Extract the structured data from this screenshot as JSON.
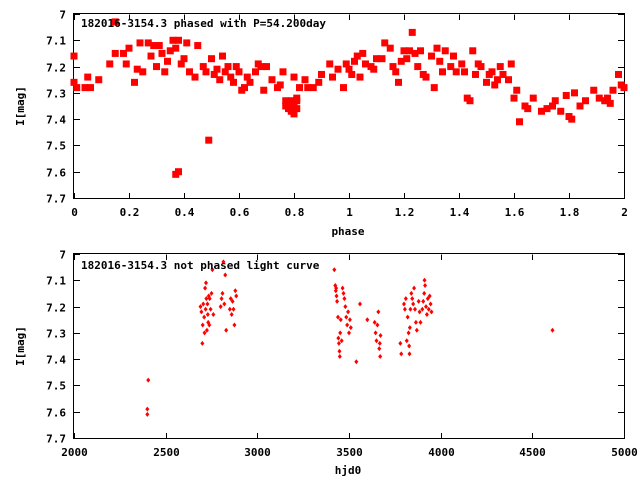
{
  "chart_data": [
    {
      "type": "scatter",
      "title": "182016-3154.3 phased with P=54.200day",
      "xlabel": "phase",
      "ylabel": "I[mag]",
      "xlim": [
        0,
        2
      ],
      "ylim": [
        7.7,
        7
      ],
      "y_inverted": true,
      "x_ticks": [
        0,
        0.2,
        0.4,
        0.6,
        0.8,
        1,
        1.2,
        1.4,
        1.6,
        1.8,
        2
      ],
      "x_tick_labels": [
        "0",
        "0.2",
        "0.4",
        "0.6",
        "0.8",
        "1",
        "1.2",
        "1.4",
        "1.6",
        "1.8",
        "2"
      ],
      "y_ticks": [
        7,
        7.1,
        7.2,
        7.3,
        7.4,
        7.5,
        7.6,
        7.7
      ],
      "y_tick_labels": [
        "7",
        "7.1",
        "7.2",
        "7.3",
        "7.4",
        "7.5",
        "7.6",
        "7.7"
      ],
      "color": "#ff0000",
      "marker": "filled-square",
      "points": [
        [
          0.0,
          7.16
        ],
        [
          0.0,
          7.26
        ],
        [
          0.01,
          7.28
        ],
        [
          0.04,
          7.28
        ],
        [
          0.05,
          7.24
        ],
        [
          0.06,
          7.28
        ],
        [
          0.09,
          7.25
        ],
        [
          0.13,
          7.19
        ],
        [
          0.15,
          7.03
        ],
        [
          0.15,
          7.15
        ],
        [
          0.18,
          7.15
        ],
        [
          0.19,
          7.19
        ],
        [
          0.2,
          7.13
        ],
        [
          0.22,
          7.26
        ],
        [
          0.23,
          7.21
        ],
        [
          0.24,
          7.11
        ],
        [
          0.25,
          7.22
        ],
        [
          0.27,
          7.11
        ],
        [
          0.28,
          7.16
        ],
        [
          0.29,
          7.12
        ],
        [
          0.3,
          7.2
        ],
        [
          0.31,
          7.12
        ],
        [
          0.32,
          7.15
        ],
        [
          0.33,
          7.22
        ],
        [
          0.34,
          7.18
        ],
        [
          0.35,
          7.14
        ],
        [
          0.36,
          7.1
        ],
        [
          0.37,
          7.13
        ],
        [
          0.37,
          7.61
        ],
        [
          0.38,
          7.1
        ],
        [
          0.38,
          7.6
        ],
        [
          0.39,
          7.19
        ],
        [
          0.4,
          7.17
        ],
        [
          0.41,
          7.11
        ],
        [
          0.42,
          7.22
        ],
        [
          0.44,
          7.24
        ],
        [
          0.45,
          7.12
        ],
        [
          0.47,
          7.2
        ],
        [
          0.48,
          7.22
        ],
        [
          0.49,
          7.48
        ],
        [
          0.5,
          7.17
        ],
        [
          0.51,
          7.23
        ],
        [
          0.52,
          7.21
        ],
        [
          0.53,
          7.25
        ],
        [
          0.54,
          7.16
        ],
        [
          0.55,
          7.22
        ],
        [
          0.56,
          7.2
        ],
        [
          0.57,
          7.24
        ],
        [
          0.58,
          7.26
        ],
        [
          0.59,
          7.2
        ],
        [
          0.6,
          7.22
        ],
        [
          0.61,
          7.29
        ],
        [
          0.62,
          7.28
        ],
        [
          0.63,
          7.24
        ],
        [
          0.64,
          7.26
        ],
        [
          0.66,
          7.22
        ],
        [
          0.67,
          7.19
        ],
        [
          0.68,
          7.2
        ],
        [
          0.69,
          7.29
        ],
        [
          0.7,
          7.2
        ],
        [
          0.72,
          7.25
        ],
        [
          0.74,
          7.28
        ],
        [
          0.75,
          7.27
        ],
        [
          0.76,
          7.22
        ],
        [
          0.77,
          7.33
        ],
        [
          0.77,
          7.35
        ],
        [
          0.78,
          7.34
        ],
        [
          0.78,
          7.36
        ],
        [
          0.79,
          7.33
        ],
        [
          0.79,
          7.37
        ],
        [
          0.8,
          7.35
        ],
        [
          0.8,
          7.38
        ],
        [
          0.8,
          7.24
        ],
        [
          0.81,
          7.33
        ],
        [
          0.81,
          7.32
        ],
        [
          0.81,
          7.36
        ],
        [
          0.82,
          7.28
        ],
        [
          0.84,
          7.25
        ],
        [
          0.85,
          7.28
        ],
        [
          0.87,
          7.28
        ],
        [
          0.89,
          7.26
        ],
        [
          0.9,
          7.23
        ],
        [
          0.93,
          7.19
        ],
        [
          0.94,
          7.24
        ],
        [
          0.96,
          7.21
        ],
        [
          0.98,
          7.28
        ],
        [
          0.99,
          7.19
        ],
        [
          1.0,
          7.21
        ],
        [
          1.01,
          7.23
        ],
        [
          1.02,
          7.18
        ],
        [
          1.03,
          7.16
        ],
        [
          1.04,
          7.24
        ],
        [
          1.05,
          7.15
        ],
        [
          1.06,
          7.19
        ],
        [
          1.08,
          7.2
        ],
        [
          1.09,
          7.21
        ],
        [
          1.1,
          7.17
        ],
        [
          1.12,
          7.17
        ],
        [
          1.13,
          7.11
        ],
        [
          1.15,
          7.13
        ],
        [
          1.16,
          7.2
        ],
        [
          1.17,
          7.22
        ],
        [
          1.18,
          7.26
        ],
        [
          1.19,
          7.18
        ],
        [
          1.2,
          7.14
        ],
        [
          1.21,
          7.17
        ],
        [
          1.22,
          7.14
        ],
        [
          1.23,
          7.07
        ],
        [
          1.24,
          7.15
        ],
        [
          1.25,
          7.2
        ],
        [
          1.26,
          7.14
        ],
        [
          1.27,
          7.23
        ],
        [
          1.28,
          7.24
        ],
        [
          1.3,
          7.16
        ],
        [
          1.31,
          7.28
        ],
        [
          1.32,
          7.13
        ],
        [
          1.33,
          7.18
        ],
        [
          1.34,
          7.22
        ],
        [
          1.35,
          7.14
        ],
        [
          1.37,
          7.2
        ],
        [
          1.38,
          7.16
        ],
        [
          1.39,
          7.22
        ],
        [
          1.41,
          7.19
        ],
        [
          1.42,
          7.22
        ],
        [
          1.43,
          7.32
        ],
        [
          1.44,
          7.33
        ],
        [
          1.45,
          7.14
        ],
        [
          1.46,
          7.23
        ],
        [
          1.47,
          7.19
        ],
        [
          1.48,
          7.2
        ],
        [
          1.5,
          7.26
        ],
        [
          1.51,
          7.23
        ],
        [
          1.52,
          7.22
        ],
        [
          1.53,
          7.27
        ],
        [
          1.54,
          7.25
        ],
        [
          1.55,
          7.2
        ],
        [
          1.56,
          7.23
        ],
        [
          1.58,
          7.25
        ],
        [
          1.59,
          7.19
        ],
        [
          1.6,
          7.32
        ],
        [
          1.61,
          7.29
        ],
        [
          1.62,
          7.41
        ],
        [
          1.64,
          7.35
        ],
        [
          1.65,
          7.36
        ],
        [
          1.67,
          7.32
        ],
        [
          1.7,
          7.37
        ],
        [
          1.72,
          7.36
        ],
        [
          1.74,
          7.35
        ],
        [
          1.75,
          7.33
        ],
        [
          1.77,
          7.37
        ],
        [
          1.79,
          7.31
        ],
        [
          1.8,
          7.39
        ],
        [
          1.81,
          7.4
        ],
        [
          1.82,
          7.3
        ],
        [
          1.84,
          7.35
        ],
        [
          1.86,
          7.33
        ],
        [
          1.89,
          7.29
        ],
        [
          1.91,
          7.32
        ],
        [
          1.93,
          7.33
        ],
        [
          1.94,
          7.32
        ],
        [
          1.95,
          7.34
        ],
        [
          1.96,
          7.29
        ],
        [
          1.98,
          7.23
        ],
        [
          1.99,
          7.27
        ],
        [
          2.0,
          7.28
        ]
      ]
    },
    {
      "type": "scatter",
      "title": "182016-3154.3 not phased light curve",
      "xlabel": "hjd0",
      "ylabel": "I[mag]",
      "xlim": [
        2000,
        5000
      ],
      "ylim": [
        7.7,
        7
      ],
      "y_inverted": true,
      "x_ticks": [
        2000,
        2500,
        3000,
        3500,
        4000,
        4500,
        5000
      ],
      "x_tick_labels": [
        "2000",
        "2500",
        "3000",
        "3500",
        "4000",
        "4500",
        "5000"
      ],
      "y_ticks": [
        7,
        7.1,
        7.2,
        7.3,
        7.4,
        7.5,
        7.6,
        7.7
      ],
      "y_tick_labels": [
        "7",
        "7.1",
        "7.2",
        "7.3",
        "7.4",
        "7.5",
        "7.6",
        "7.7"
      ],
      "color": "#ff0000",
      "marker": "small-diamond",
      "points": [
        [
          2400,
          7.59
        ],
        [
          2400,
          7.61
        ],
        [
          2405,
          7.48
        ],
        [
          2690,
          7.2
        ],
        [
          2695,
          7.22
        ],
        [
          2700,
          7.34
        ],
        [
          2702,
          7.27
        ],
        [
          2705,
          7.19
        ],
        [
          2710,
          7.24
        ],
        [
          2712,
          7.3
        ],
        [
          2715,
          7.13
        ],
        [
          2718,
          7.21
        ],
        [
          2720,
          7.11
        ],
        [
          2722,
          7.17
        ],
        [
          2725,
          7.29
        ],
        [
          2728,
          7.19
        ],
        [
          2730,
          7.23
        ],
        [
          2732,
          7.26
        ],
        [
          2735,
          7.16
        ],
        [
          2738,
          7.27
        ],
        [
          2740,
          7.17
        ],
        [
          2745,
          7.21
        ],
        [
          2750,
          7.15
        ],
        [
          2755,
          7.06
        ],
        [
          2760,
          7.23
        ],
        [
          2800,
          7.2
        ],
        [
          2805,
          7.17
        ],
        [
          2810,
          7.15
        ],
        [
          2815,
          7.03
        ],
        [
          2820,
          7.19
        ],
        [
          2825,
          7.08
        ],
        [
          2830,
          7.29
        ],
        [
          2850,
          7.21
        ],
        [
          2855,
          7.17
        ],
        [
          2860,
          7.23
        ],
        [
          2865,
          7.18
        ],
        [
          2870,
          7.21
        ],
        [
          2875,
          7.27
        ],
        [
          2880,
          7.14
        ],
        [
          2885,
          7.16
        ],
        [
          3420,
          7.06
        ],
        [
          3425,
          7.12
        ],
        [
          3428,
          7.14
        ],
        [
          3430,
          7.13
        ],
        [
          3432,
          7.16
        ],
        [
          3435,
          7.18
        ],
        [
          3440,
          7.24
        ],
        [
          3442,
          7.32
        ],
        [
          3445,
          7.34
        ],
        [
          3448,
          7.37
        ],
        [
          3450,
          7.39
        ],
        [
          3452,
          7.3
        ],
        [
          3455,
          7.25
        ],
        [
          3460,
          7.33
        ],
        [
          3465,
          7.13
        ],
        [
          3470,
          7.15
        ],
        [
          3475,
          7.17
        ],
        [
          3480,
          7.2
        ],
        [
          3485,
          7.24
        ],
        [
          3490,
          7.27
        ],
        [
          3495,
          7.22
        ],
        [
          3500,
          7.3
        ],
        [
          3505,
          7.25
        ],
        [
          3510,
          7.28
        ],
        [
          3540,
          7.41
        ],
        [
          3560,
          7.19
        ],
        [
          3600,
          7.25
        ],
        [
          3640,
          7.26
        ],
        [
          3645,
          7.3
        ],
        [
          3650,
          7.33
        ],
        [
          3655,
          7.27
        ],
        [
          3660,
          7.22
        ],
        [
          3665,
          7.36
        ],
        [
          3668,
          7.34
        ],
        [
          3670,
          7.39
        ],
        [
          3672,
          7.31
        ],
        [
          3780,
          7.34
        ],
        [
          3785,
          7.38
        ],
        [
          3800,
          7.19
        ],
        [
          3805,
          7.21
        ],
        [
          3810,
          7.17
        ],
        [
          3815,
          7.33
        ],
        [
          3820,
          7.24
        ],
        [
          3825,
          7.3
        ],
        [
          3828,
          7.35
        ],
        [
          3830,
          7.38
        ],
        [
          3832,
          7.28
        ],
        [
          3835,
          7.21
        ],
        [
          3840,
          7.15
        ],
        [
          3845,
          7.17
        ],
        [
          3850,
          7.19
        ],
        [
          3855,
          7.13
        ],
        [
          3860,
          7.21
        ],
        [
          3865,
          7.26
        ],
        [
          3870,
          7.29
        ],
        [
          3880,
          7.18
        ],
        [
          3885,
          7.22
        ],
        [
          3890,
          7.26
        ],
        [
          3900,
          7.21
        ],
        [
          3905,
          7.18
        ],
        [
          3910,
          7.15
        ],
        [
          3912,
          7.1
        ],
        [
          3915,
          7.12
        ],
        [
          3920,
          7.2
        ],
        [
          3925,
          7.23
        ],
        [
          3930,
          7.17
        ],
        [
          3935,
          7.21
        ],
        [
          3940,
          7.16
        ],
        [
          3945,
          7.19
        ],
        [
          3950,
          7.22
        ],
        [
          4610,
          7.29
        ]
      ]
    }
  ]
}
